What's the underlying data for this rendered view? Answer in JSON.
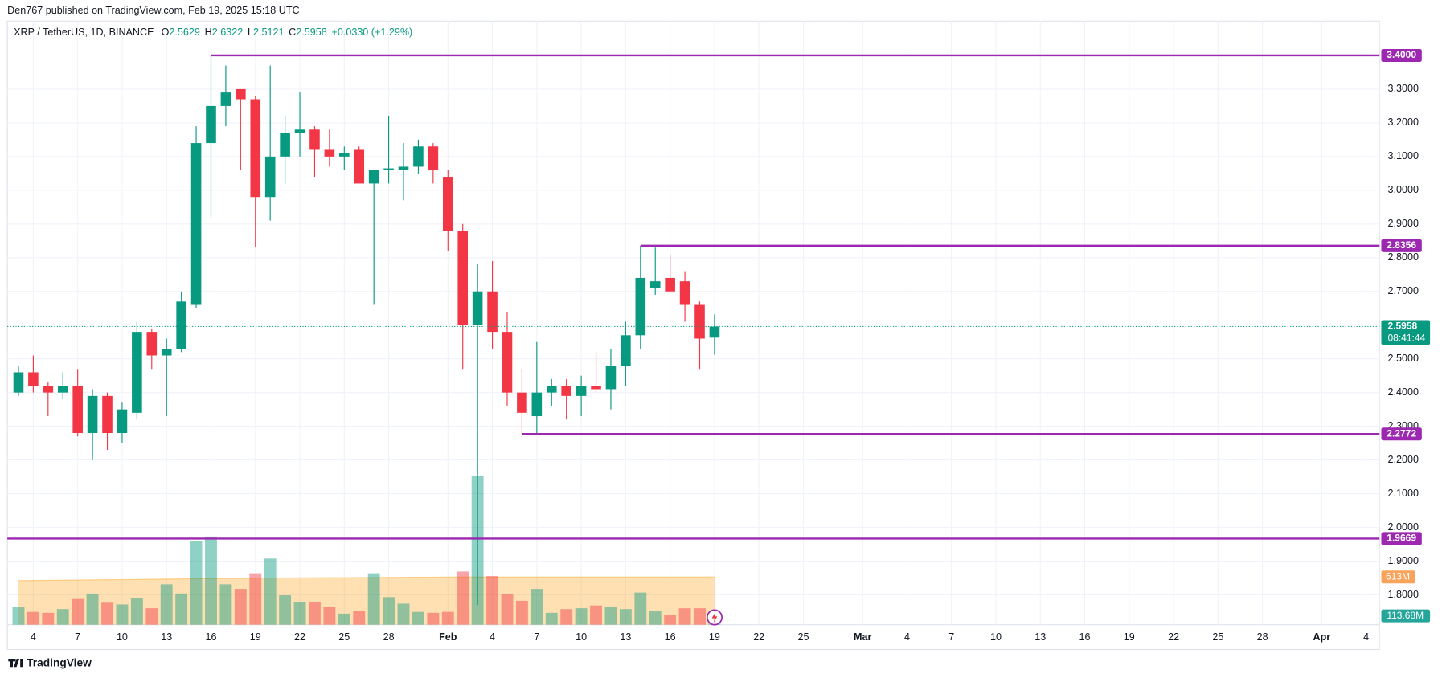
{
  "header": "Den767 published on TradingView.com, Feb 19, 2025 15:18 UTC",
  "footer": "TradingView",
  "chart_data": {
    "type": "candlestick",
    "title": "XRP / TetherUS, 1D, BINANCE",
    "ohlc_keys": [
      "O",
      "H",
      "L",
      "C"
    ],
    "change_label": "+0.0330 (+1.29%)",
    "countdown": "08:41:44",
    "up_color": "#089981",
    "down_color": "#f23645",
    "level_color": "#9c27b0",
    "grid": true,
    "x": [
      "Jan 3",
      "Jan 4",
      "Jan 5",
      "Jan 6",
      "Jan 7",
      "Jan 8",
      "Jan 9",
      "Jan 10",
      "Jan 11",
      "Jan 12",
      "Jan 13",
      "Jan 14",
      "Jan 15",
      "Jan 16",
      "Jan 17",
      "Jan 18",
      "Jan 19",
      "Jan 20",
      "Jan 21",
      "Jan 22",
      "Jan 23",
      "Jan 24",
      "Jan 25",
      "Jan 26",
      "Jan 27",
      "Jan 28",
      "Jan 29",
      "Jan 30",
      "Jan 31",
      "Feb 1",
      "Feb 2",
      "Feb 3",
      "Feb 4",
      "Feb 5",
      "Feb 6",
      "Feb 7",
      "Feb 8",
      "Feb 9",
      "Feb 10",
      "Feb 11",
      "Feb 12",
      "Feb 13",
      "Feb 14",
      "Feb 15",
      "Feb 16",
      "Feb 17",
      "Feb 18",
      "Feb 19"
    ],
    "open": [
      2.4,
      2.46,
      2.42,
      2.4,
      2.42,
      2.28,
      2.39,
      2.28,
      2.34,
      2.58,
      2.51,
      2.53,
      2.66,
      3.14,
      3.25,
      3.3,
      3.27,
      2.98,
      3.1,
      3.17,
      3.18,
      3.12,
      3.1,
      3.12,
      3.02,
      3.06,
      3.06,
      3.07,
      3.13,
      3.04,
      2.88,
      2.6,
      2.7,
      2.58,
      2.4,
      2.33,
      2.4,
      2.42,
      2.39,
      2.42,
      2.41,
      2.48,
      2.57,
      2.71,
      2.74,
      2.73,
      2.66,
      2.5629
    ],
    "high": [
      2.48,
      2.51,
      2.43,
      2.46,
      2.47,
      2.41,
      2.4,
      2.37,
      2.61,
      2.59,
      2.56,
      2.7,
      3.19,
      3.4,
      3.37,
      3.3,
      3.28,
      3.37,
      3.22,
      3.29,
      3.19,
      3.18,
      3.13,
      3.13,
      3.06,
      3.22,
      3.14,
      3.15,
      3.14,
      3.06,
      2.9,
      2.78,
      2.79,
      2.64,
      2.47,
      2.55,
      2.44,
      2.44,
      2.45,
      2.52,
      2.53,
      2.61,
      2.8356,
      2.83,
      2.81,
      2.76,
      2.67,
      2.6322
    ],
    "low": [
      2.39,
      2.4,
      2.33,
      2.38,
      2.27,
      2.2,
      2.23,
      2.25,
      2.32,
      2.47,
      2.33,
      2.52,
      2.65,
      2.92,
      3.19,
      3.06,
      2.83,
      2.91,
      3.02,
      3.1,
      3.04,
      3.07,
      3.06,
      3.02,
      2.66,
      3.02,
      2.97,
      3.05,
      3.02,
      2.82,
      2.47,
      1.77,
      2.53,
      2.36,
      2.2772,
      2.28,
      2.36,
      2.32,
      2.33,
      2.4,
      2.35,
      2.42,
      2.53,
      2.69,
      2.7,
      2.61,
      2.47,
      2.5121
    ],
    "close": [
      2.46,
      2.42,
      2.4,
      2.42,
      2.28,
      2.39,
      2.28,
      2.35,
      2.58,
      2.51,
      2.53,
      2.67,
      3.14,
      3.25,
      3.29,
      3.27,
      2.98,
      3.1,
      3.17,
      3.18,
      3.12,
      3.1,
      3.11,
      3.02,
      3.06,
      3.065,
      3.07,
      3.13,
      3.06,
      2.88,
      2.6,
      2.7,
      2.58,
      2.4,
      2.34,
      2.4,
      2.42,
      2.39,
      2.42,
      2.41,
      2.48,
      2.57,
      2.74,
      2.73,
      2.7,
      2.66,
      2.56,
      2.5958
    ],
    "volume": {
      "values": [
        224,
        165,
        153,
        201,
        330,
        389,
        283,
        260,
        342,
        212,
        519,
        401,
        1074,
        1133,
        519,
        460,
        661,
        850,
        378,
        295,
        295,
        224,
        142,
        177,
        661,
        354,
        271,
        165,
        153,
        165,
        684,
        1912,
        625,
        389,
        307,
        460,
        153,
        201,
        212,
        248,
        224,
        201,
        413,
        177,
        130,
        212,
        212,
        113.68
      ],
      "last_label": "113.68M"
    },
    "volume_ma": {
      "values": [
        566,
        568,
        570,
        572,
        574,
        576,
        578,
        580,
        582,
        584,
        586,
        588,
        590,
        592,
        594,
        596,
        598,
        600,
        601,
        602,
        603,
        604,
        605,
        606,
        607,
        608,
        609,
        610,
        611,
        612,
        613,
        613,
        613,
        613,
        613,
        613,
        613,
        613,
        613,
        613,
        613,
        613,
        613,
        613,
        613,
        613,
        613,
        613
      ],
      "last_label": "613M",
      "color": "#ff9800"
    },
    "vlim": [
      0,
      2000
    ],
    "xlim": [
      -0.75,
      91.9
    ],
    "ylim": [
      1.7114,
      3.5016
    ],
    "xticks": [
      {
        "value": 1,
        "label": "4"
      },
      {
        "value": 4,
        "label": "7"
      },
      {
        "value": 7,
        "label": "10"
      },
      {
        "value": 10,
        "label": "13"
      },
      {
        "value": 13,
        "label": "16"
      },
      {
        "value": 16,
        "label": "19"
      },
      {
        "value": 19,
        "label": "22"
      },
      {
        "value": 22,
        "label": "25"
      },
      {
        "value": 25,
        "label": "28"
      },
      {
        "value": 29,
        "label": "Feb"
      },
      {
        "value": 32,
        "label": "4"
      },
      {
        "value": 35,
        "label": "7"
      },
      {
        "value": 38,
        "label": "10"
      },
      {
        "value": 41,
        "label": "13"
      },
      {
        "value": 44,
        "label": "16"
      },
      {
        "value": 47,
        "label": "19"
      },
      {
        "value": 50,
        "label": "22"
      },
      {
        "value": 53,
        "label": "25"
      },
      {
        "value": 57,
        "label": "Mar"
      },
      {
        "value": 60,
        "label": "4"
      },
      {
        "value": 63,
        "label": "7"
      },
      {
        "value": 66,
        "label": "10"
      },
      {
        "value": 69,
        "label": "13"
      },
      {
        "value": 72,
        "label": "16"
      },
      {
        "value": 75,
        "label": "19"
      },
      {
        "value": 78,
        "label": "22"
      },
      {
        "value": 81,
        "label": "25"
      },
      {
        "value": 84,
        "label": "28"
      },
      {
        "value": 88,
        "label": "Apr"
      },
      {
        "value": 91,
        "label": "4"
      }
    ],
    "yticks": [
      {
        "value": 1.8,
        "label": "1.8000"
      },
      {
        "value": 1.9,
        "label": "1.9000"
      },
      {
        "value": 2.0,
        "label": "2.0000"
      },
      {
        "value": 2.1,
        "label": "2.1000"
      },
      {
        "value": 2.2,
        "label": "2.2000"
      },
      {
        "value": 2.3,
        "label": "2.3000"
      },
      {
        "value": 2.4,
        "label": "2.4000"
      },
      {
        "value": 2.5,
        "label": "2.5000"
      },
      {
        "value": 2.7,
        "label": "2.7000"
      },
      {
        "value": 2.8,
        "label": "2.8000"
      },
      {
        "value": 2.9,
        "label": "2.9000"
      },
      {
        "value": 3.0,
        "label": "3.0000"
      },
      {
        "value": 3.1,
        "label": "3.1000"
      },
      {
        "value": 3.2,
        "label": "3.2000"
      },
      {
        "value": 3.3,
        "label": "3.3000"
      }
    ],
    "levels": [
      {
        "value": 3.4,
        "label": "3.4000",
        "from": "Jan 16"
      },
      {
        "value": 2.8356,
        "label": "2.8356",
        "from": "Feb 14"
      },
      {
        "value": 2.2772,
        "label": "2.2772",
        "from": "Feb 6"
      },
      {
        "value": 1.9669,
        "label": "1.9669"
      }
    ]
  }
}
